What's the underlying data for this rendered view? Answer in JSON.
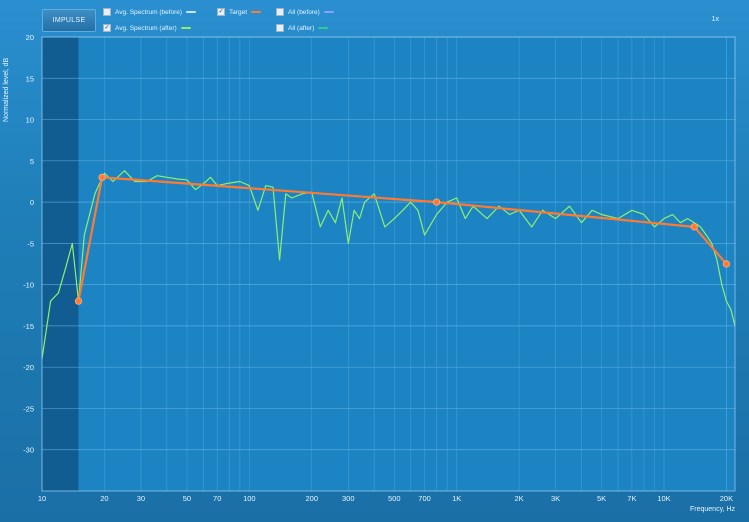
{
  "toolbar": {
    "impulse_label": "IMPULSE",
    "zoom_label": "1x"
  },
  "legend": [
    {
      "label": "Avg. Spectrum (before)",
      "checked": false,
      "color": "#cfe3f5"
    },
    {
      "label": "Target",
      "checked": true,
      "color": "#ff7a30"
    },
    {
      "label": "All (before)",
      "checked": false,
      "color": "#8aa0ff"
    },
    {
      "label": "Avg. Spectrum (after)",
      "checked": true,
      "color": "#8cf06e"
    },
    {
      "label": "All (after)",
      "checked": false,
      "color": "#2fd08a"
    }
  ],
  "chart_data": {
    "type": "line",
    "xlabel": "Frequency, Hz",
    "ylabel": "Normalized level, dB",
    "xscale": "log",
    "xlim": [
      10,
      22000
    ],
    "ylim": [
      -35,
      20
    ],
    "grid": true,
    "x_ticks": [
      {
        "value": 10,
        "label": "10"
      },
      {
        "value": 20,
        "label": "20"
      },
      {
        "value": 30,
        "label": "30"
      },
      {
        "value": 50,
        "label": "50"
      },
      {
        "value": 70,
        "label": "70"
      },
      {
        "value": 100,
        "label": "100"
      },
      {
        "value": 200,
        "label": "200"
      },
      {
        "value": 300,
        "label": "300"
      },
      {
        "value": 500,
        "label": "500"
      },
      {
        "value": 700,
        "label": "700"
      },
      {
        "value": 1000,
        "label": "1K"
      },
      {
        "value": 2000,
        "label": "2K"
      },
      {
        "value": 3000,
        "label": "3K"
      },
      {
        "value": 5000,
        "label": "5K"
      },
      {
        "value": 7000,
        "label": "7K"
      },
      {
        "value": 10000,
        "label": "10K"
      },
      {
        "value": 20000,
        "label": "20K"
      }
    ],
    "y_ticks": [
      20,
      15,
      10,
      5,
      0,
      -5,
      -10,
      -15,
      -20,
      -25,
      -30
    ],
    "excluded_region_hz": [
      10,
      15
    ],
    "series": [
      {
        "name": "Target",
        "color": "#ff7a30",
        "x": [
          15,
          19.5,
          800,
          14000,
          20000
        ],
        "y": [
          -12,
          3,
          0,
          -3,
          -7.5
        ],
        "markers": true
      },
      {
        "name": "Avg. Spectrum (after)",
        "color": "#8cf06e",
        "x": [
          10,
          11,
          12,
          13,
          14,
          15,
          16,
          18,
          20,
          22,
          25,
          28,
          32,
          36,
          40,
          45,
          50,
          55,
          60,
          65,
          70,
          80,
          90,
          100,
          110,
          120,
          130,
          140,
          150,
          160,
          180,
          200,
          220,
          240,
          260,
          280,
          300,
          320,
          340,
          360,
          400,
          450,
          500,
          550,
          600,
          650,
          700,
          800,
          900,
          1000,
          1100,
          1200,
          1400,
          1600,
          1800,
          2000,
          2300,
          2600,
          3000,
          3500,
          4000,
          4500,
          5000,
          6000,
          7000,
          8000,
          9000,
          10000,
          11000,
          12000,
          13000,
          14000,
          15000,
          16000,
          17000,
          18000,
          19000,
          20000,
          21000,
          22000
        ],
        "y": [
          -19,
          -12,
          -11,
          -8,
          -5,
          -12,
          -4,
          1,
          3.5,
          2.5,
          3.8,
          2.5,
          2.5,
          3.2,
          3,
          2.8,
          2.7,
          1.5,
          2.2,
          3,
          2,
          2.3,
          2.5,
          2,
          -1,
          2,
          1.8,
          -7,
          1,
          0.5,
          1,
          1.2,
          -3,
          -1,
          -2.5,
          0.5,
          -5,
          -1,
          -2,
          0,
          1,
          -3,
          -2,
          -1,
          0,
          -1,
          -4,
          -1.5,
          0,
          0.5,
          -2,
          -0.5,
          -2,
          -0.5,
          -1.5,
          -1,
          -3,
          -1,
          -2,
          -0.5,
          -2.5,
          -1,
          -1.5,
          -2,
          -1,
          -1.5,
          -3,
          -2,
          -1.5,
          -2.5,
          -2,
          -2.5,
          -3,
          -4,
          -5,
          -7,
          -10,
          -12,
          -13,
          -15
        ]
      }
    ]
  }
}
